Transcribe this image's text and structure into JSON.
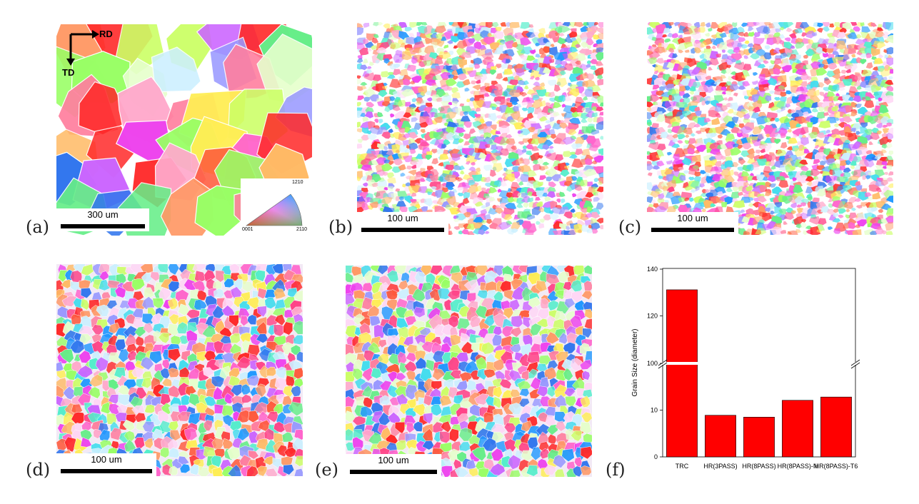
{
  "panels": [
    {
      "label": "(a)",
      "scale": "300 um"
    },
    {
      "label": "(b)",
      "scale": "100 um"
    },
    {
      "label": "(c)",
      "scale": "100 um"
    },
    {
      "label": "(d)",
      "scale": "100 um"
    },
    {
      "label": "(e)",
      "scale": "100 um"
    },
    {
      "label": "(f)"
    }
  ],
  "axes_labels": {
    "rd": "RD",
    "td": "TD"
  },
  "ipf_legend": {
    "top": "1210",
    "left": "0001",
    "right": "2110"
  },
  "chart_data": {
    "type": "bar",
    "categories": [
      "TRC",
      "HR(3PASS)",
      "HR(8PASS)",
      "HR(8PASS)-N",
      "HR(8PASS)-T6"
    ],
    "values": [
      131,
      8.9,
      8.5,
      12.1,
      12.8
    ],
    "xlabel": "",
    "ylabel": "Grain Size (diameter)",
    "y_broken_axis": true,
    "lower_ylim": [
      0,
      20
    ],
    "upper_ylim": [
      100,
      140
    ],
    "yticks": [
      "0",
      "10",
      "100",
      "120",
      "140"
    ],
    "bar_color": "#ff0000",
    "grid": false
  }
}
